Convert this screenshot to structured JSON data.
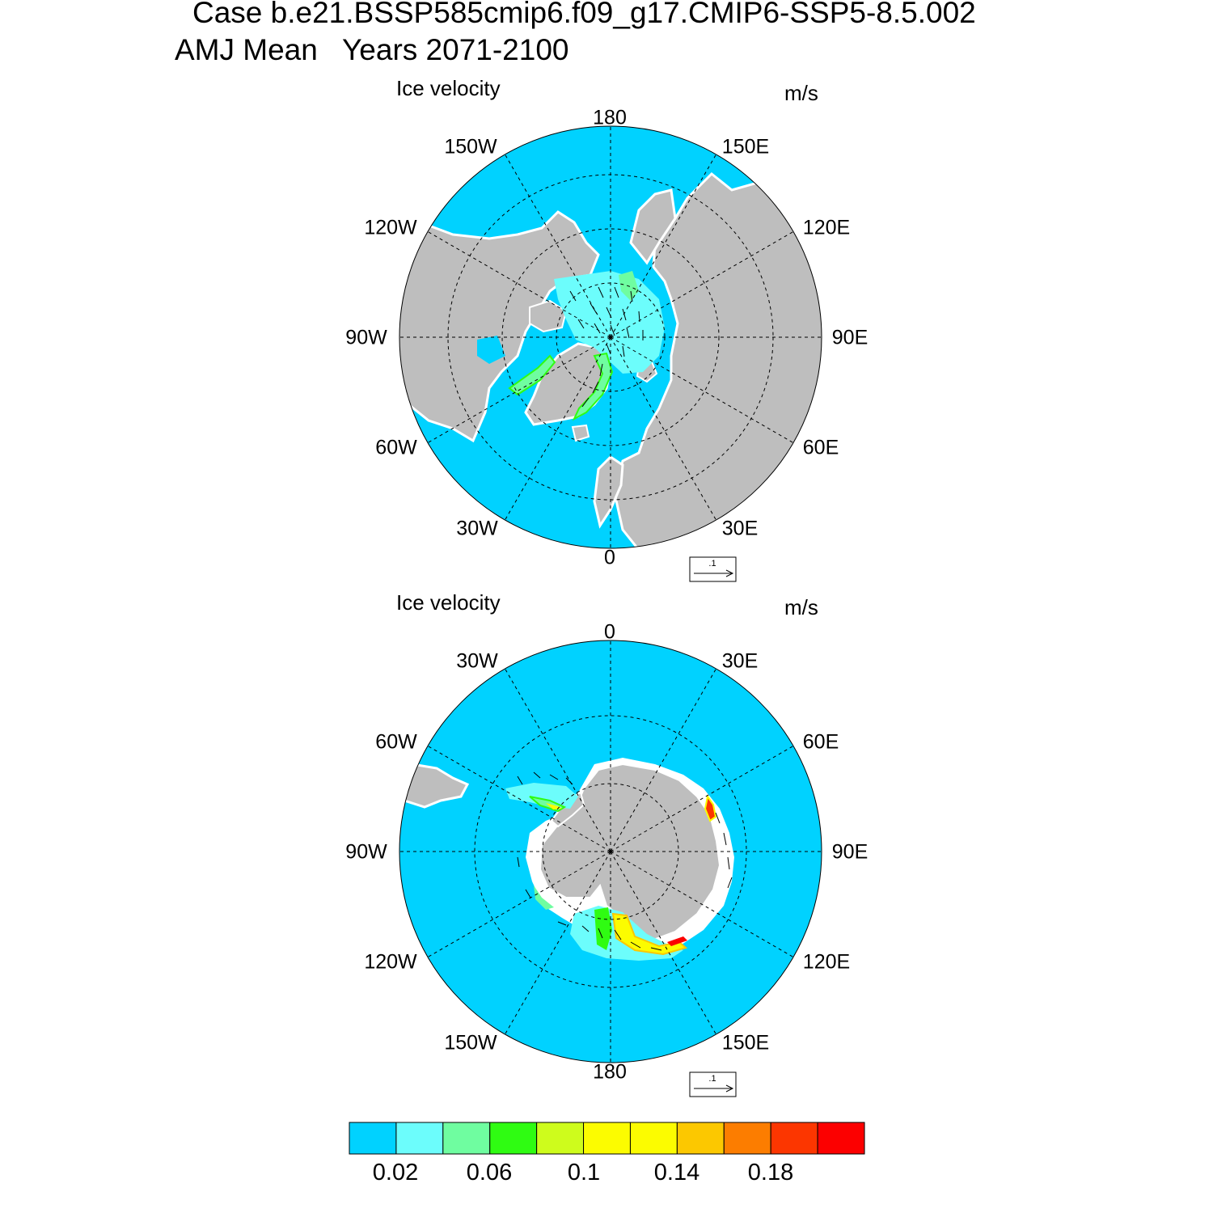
{
  "header": {
    "case_line": "Case b.e21.BSSP585cmip6.f09_g17.CMIP6-SSP5-8.5.002",
    "season_line": "AMJ Mean   Years 2071-2100"
  },
  "panels": [
    {
      "variable": "Ice velocity",
      "units": "m/s",
      "hemisphere": "north",
      "lon_labels": [
        "180",
        "150E",
        "120E",
        "90E",
        "60E",
        "30E",
        "0",
        "30W",
        "60W",
        "90W",
        "120W",
        "150W"
      ],
      "ref_vector_label": ".1"
    },
    {
      "variable": "Ice velocity",
      "units": "m/s",
      "hemisphere": "south",
      "lon_labels": [
        "0",
        "30E",
        "60E",
        "90E",
        "120E",
        "150E",
        "180",
        "150W",
        "120W",
        "90W",
        "60W",
        "30W"
      ],
      "ref_vector_label": ".1"
    }
  ],
  "colorbar": {
    "colors": [
      "#00d2ff",
      "#6cfdfc",
      "#6ffda0",
      "#2ffc12",
      "#cefc1c",
      "#fcfc00",
      "#fcfc00",
      "#fcc800",
      "#fc7d00",
      "#fc3600",
      "#fc0000"
    ],
    "tick_labels": [
      "0.02",
      "0.06",
      "0.1",
      "0.14",
      "0.18"
    ]
  },
  "colors": {
    "ocean": "#00d2ff",
    "land": "#bebebe",
    "no_data": "#ffffff"
  }
}
